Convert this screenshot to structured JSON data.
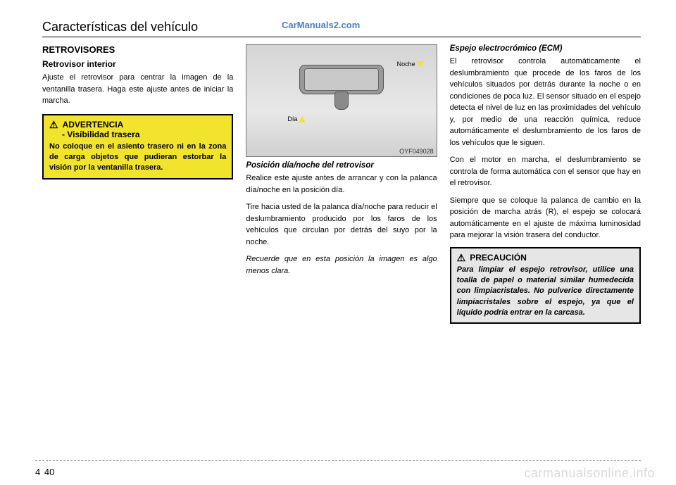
{
  "chapter_title": "Características del vehículo",
  "watermark_top": "CarManuals2.com",
  "watermark_bottom": "carmanualsonline.info",
  "page_section": "4",
  "page_number": "40",
  "col1": {
    "section": "RETROVISORES",
    "subsection": "Retrovisor interior",
    "para1": "Ajuste el retrovisor para centrar la imagen de la ventanilla trasera. Haga este ajuste antes de iniciar la marcha.",
    "warning": {
      "label": "ADVERTENCIA",
      "subtitle": "- Visibilidad trasera",
      "text": "No coloque en el asiento trasero ni en la zona de carga objetos que pudieran estorbar la visión por la ventanilla trasera."
    }
  },
  "col2": {
    "image": {
      "label_night": "Noche",
      "label_day": "Día",
      "code": "OYF049028"
    },
    "heading1": "Posición día/noche del retrovisor",
    "para1": "Realice este ajuste antes de arrancar y con la palanca día/noche en la posición día.",
    "para2": "Tire hacia usted de la palanca día/noche para reducir el deslumbramiento producido por los faros de los vehículos que circulan por detrás del suyo por la noche.",
    "para3": "Recuerde que en esta posición la imagen es algo menos clara."
  },
  "col3": {
    "heading1": "Espejo electrocrómico (ECM)",
    "para1": "El retrovisor controla automáticamente el deslumbramiento que procede de los faros de los vehículos situados por detrás durante la noche o en condiciones de poca luz. El sensor situado en el espejo detecta el nivel de luz en las proximidades del vehículo y, por medio de una reacción química, reduce automáticamente el deslumbramiento de los faros de los vehículos que le siguen.",
    "para2": "Con el motor en marcha, el deslumbramiento se controla de forma automática con el sensor que hay en el retrovisor.",
    "para3": "Siempre que se coloque la palanca de cambio en la posición de marcha atrás (R), el espejo se colocará automáticamente en el ajuste de máxima luminosidad para mejorar la visión trasera del conductor.",
    "caution": {
      "label": "PRECAUCIÓN",
      "text": "Para limpiar el espejo retrovisor, utilice una toalla de papel o material similar humedecida con limpiacristales. No pulverice directamente limpiacristales sobre el espejo, ya que el líquido podría entrar en la carcasa."
    }
  }
}
